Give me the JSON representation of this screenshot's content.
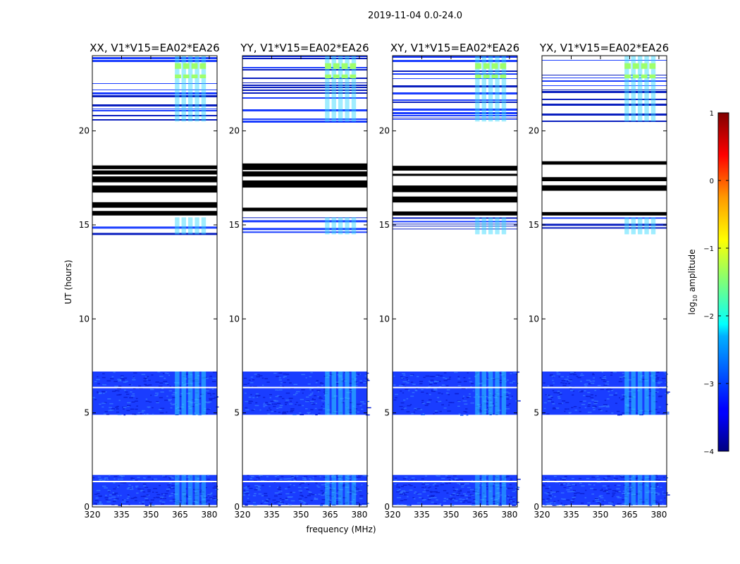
{
  "figure": {
    "suptitle": "2019-11-04 0.0-24.0",
    "xlabel": "frequency (MHz)",
    "ylabel": "UT (hours)"
  },
  "colorbar": {
    "label": "log10 amplitude",
    "label_main": "log",
    "label_sub": "10",
    "label_tail": " amplitude",
    "ticks": [
      "1",
      "0",
      "−1",
      "−2",
      "−3",
      "−4"
    ],
    "range": [
      -4,
      1
    ],
    "colormap": "jet"
  },
  "chart_data": {
    "type": "heatmap",
    "xlim": [
      320,
      384
    ],
    "ylim": [
      0,
      24
    ],
    "x_ticks": [
      "320",
      "335",
      "350",
      "365",
      "380"
    ],
    "y_ticks": [
      "0",
      "5",
      "10",
      "15",
      "20"
    ],
    "panels": [
      {
        "title": "XX, V1*V15=EA02*EA26"
      },
      {
        "title": "YY, V1*V15=EA02*EA26"
      },
      {
        "title": "XY, V1*V15=EA02*EA26"
      },
      {
        "title": "YX, V1*V15=EA02*EA26"
      }
    ],
    "data_blocks_ut": [
      [
        0.1,
        1.7
      ],
      [
        4.9,
        7.2
      ],
      [
        14.5,
        15.4
      ],
      [
        20.5,
        24.0
      ]
    ],
    "gaps_ut": [
      1.35,
      6.35
    ],
    "flagged_ut": [
      [
        15.5,
        18.5
      ]
    ],
    "rfi_band_mhz": [
      362,
      379
    ]
  },
  "colors": {
    "background": "#ffffff",
    "base": "#1a3dff",
    "flag": "#000000"
  }
}
